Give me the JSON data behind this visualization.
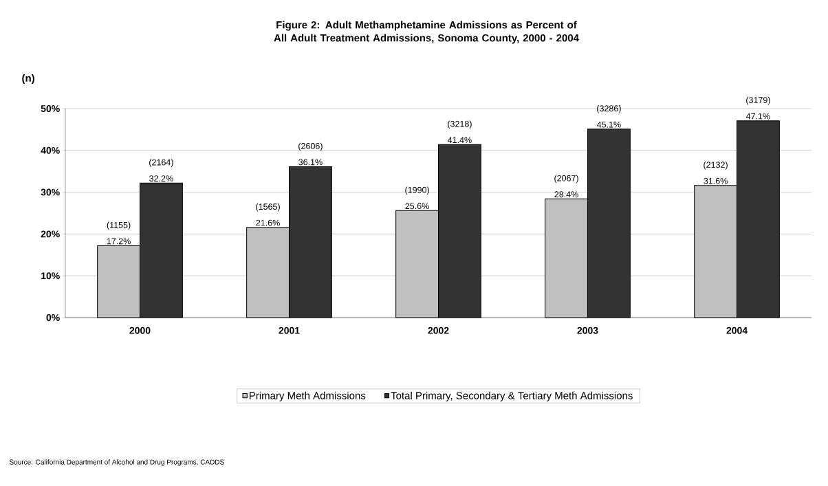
{
  "chart_data": {
    "type": "bar",
    "title": "Figure 2:  Adult Methamphetamine Admissions as Percent of All Adult Treatment Admissions,  Sonoma County, 2000 - 2004",
    "ylabel": "(n)",
    "categories": [
      "2000",
      "2001",
      "2002",
      "2003",
      "2004"
    ],
    "series": [
      {
        "name": "Primary Meth Admissions",
        "color": "#c0c0c0",
        "values": [
          17.2,
          21.6,
          25.6,
          28.4,
          31.6
        ],
        "value_labels": [
          "17.2%",
          "21.6%",
          "25.6%",
          "28.4%",
          "31.6%"
        ]
      },
      {
        "name": "Total Primary, Secondary & Tertiary Meth Admissions",
        "color": "#333333",
        "values": [
          32.2,
          36.1,
          41.4,
          45.1,
          47.1
        ],
        "value_labels": [
          "32.2%",
          "36.1%",
          "41.4%",
          "45.1%",
          "47.1%"
        ]
      }
    ],
    "ylim": [
      0,
      50
    ],
    "yticks": [
      {
        "value": 0,
        "label": "0%"
      },
      {
        "value": 10,
        "label": "10%"
      },
      {
        "value": 20,
        "label": "20%"
      },
      {
        "value": 30,
        "label": "30%"
      },
      {
        "value": 40,
        "label": "40%"
      },
      {
        "value": 50,
        "label": "50%"
      }
    ],
    "grid": "y",
    "legend": "bottom",
    "annotations": [
      {
        "text": "(1155)",
        "x": "2000",
        "y": 17.2
      },
      {
        "text": "(2164)",
        "x": "2000",
        "y": 32.2
      },
      {
        "text": "(1565)",
        "x": "2001",
        "y": 21.6
      },
      {
        "text": "(2606)",
        "x": "2001",
        "y": 36.1
      },
      {
        "text": "(1990)",
        "x": "2002",
        "y": 25.6
      },
      {
        "text": "(3218)",
        "x": "2002",
        "y": 41.4
      },
      {
        "text": "(2067)",
        "x": "2003",
        "y": 28.4
      },
      {
        "text": "(3286)",
        "x": "2003",
        "y": 45.1
      },
      {
        "text": "(2132)",
        "x": "2004",
        "y": 31.6
      },
      {
        "text": "(3179)",
        "x": "2004",
        "y": 47.1
      },
      "Source: California Department of Alcohol and Drug Programs, CADDS"
    ]
  }
}
